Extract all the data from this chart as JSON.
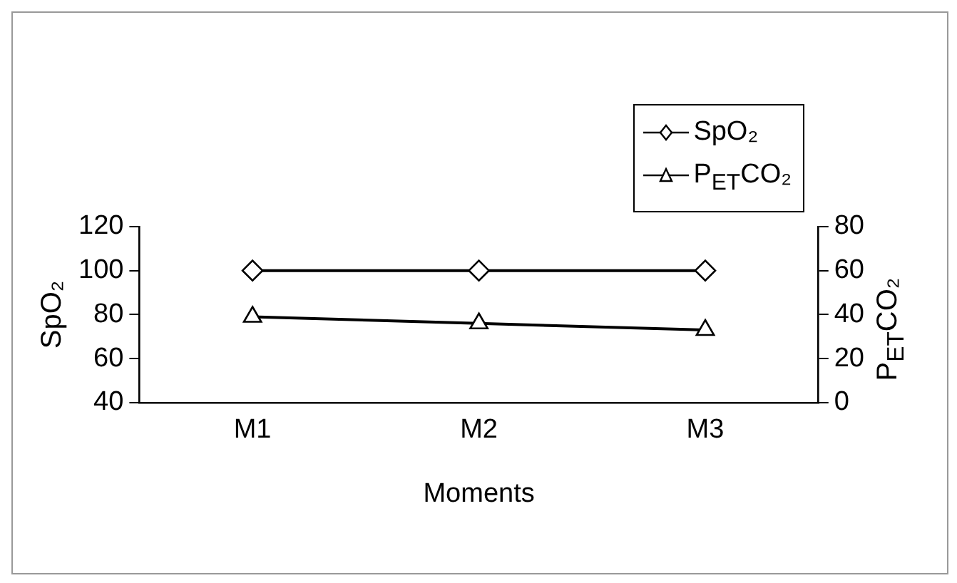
{
  "chart_data": {
    "type": "line",
    "xlabel": "Moments",
    "ylabel": "SpO₂",
    "y2label": "P$_{ET}$CO₂",
    "categories": [
      "M1",
      "M2",
      "M3"
    ],
    "series": [
      {
        "name": "SpO₂",
        "color": "#000000",
        "marker": "diamond",
        "values": [
          100,
          100,
          100
        ]
      },
      {
        "name": "P$_{ET}$CO₂",
        "color": "#000000",
        "marker": "triangle",
        "axis": "y2",
        "values": [
          39,
          36,
          33
        ]
      }
    ],
    "ylim": [
      40,
      120
    ],
    "yticks": [
      40,
      60,
      80,
      100,
      120
    ],
    "y2lim": [
      0,
      80
    ],
    "y2ticks": [
      0,
      20,
      40,
      60,
      80
    ],
    "grid": false,
    "legend": "top right"
  }
}
